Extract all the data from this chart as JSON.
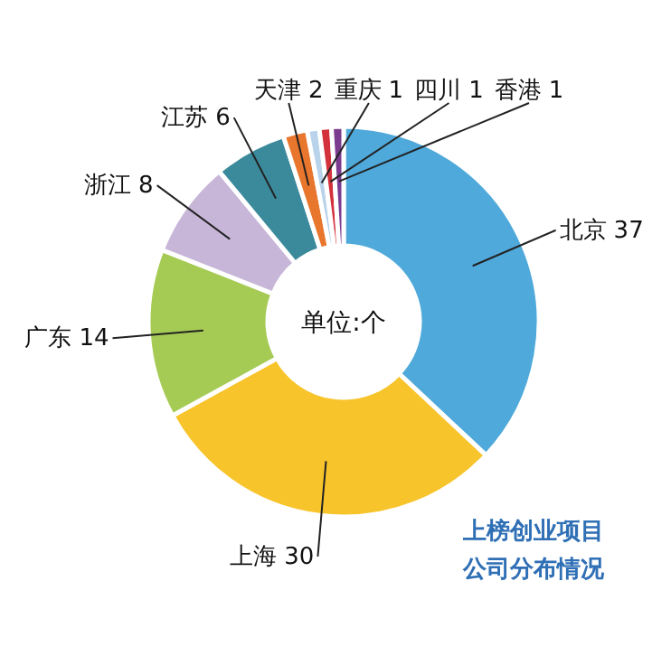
{
  "chart_data": {
    "type": "donut",
    "title": "上榜创业项目公司分布情况",
    "categories": [
      "北京",
      "上海",
      "广东",
      "浙江",
      "江苏",
      "天津",
      "重庆",
      "四川",
      "香港"
    ],
    "values": [
      37,
      30,
      14,
      8,
      6,
      2,
      1,
      1,
      1
    ],
    "colors": [
      "#4fa9da",
      "#f8c42c",
      "#a6cb55",
      "#c7b6d8",
      "#3b8a9c",
      "#e8762c",
      "#b9d3ea",
      "#d3313b",
      "#7b3b8f"
    ],
    "data_labels": true,
    "legend": false,
    "annotations": [
      "单位:个"
    ]
  }
}
